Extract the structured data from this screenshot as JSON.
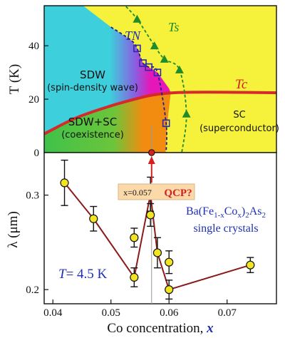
{
  "colors": {
    "sdw": "#3ecfdc",
    "sc": "#f6f13a",
    "coexist": "#3fc24a",
    "magenta": "#e617b9",
    "orange": "#f28c10",
    "tc_line": "#d42a2a",
    "tn_marker": "#2a2aa8",
    "ts_marker": "#1f8b2a",
    "lambda_line": "#8b1a1a",
    "lambda_marker": "#f2e421",
    "text_blue": "#1e2fb5",
    "text_red": "#d42020"
  },
  "chart_data": [
    {
      "type": "phase-diagram",
      "ylabel": "T (K)",
      "xlim": [
        0.0385,
        0.0785
      ],
      "ylim": [
        0,
        55
      ],
      "yticks": [
        "0",
        "20",
        "40"
      ],
      "grid": false,
      "series": [
        {
          "name": "T_N",
          "x": [
            0.0545,
            0.0555,
            0.0565,
            0.058,
            0.0595
          ],
          "y": [
            39,
            33.5,
            32,
            30,
            11
          ]
        },
        {
          "name": "T_s",
          "x": [
            0.0545,
            0.0575,
            0.0592,
            0.0618,
            0.063
          ],
          "y": [
            50,
            40,
            35,
            31,
            14.5
          ]
        },
        {
          "name": "T_c",
          "x": [
            0.0385,
            0.044,
            0.05,
            0.055,
            0.057,
            0.06,
            0.064,
            0.07,
            0.0785
          ],
          "y": [
            7,
            13,
            17.5,
            20.5,
            21.5,
            22.3,
            22.6,
            22.6,
            22.4
          ]
        }
      ],
      "regions": {
        "sdw_title": "SDW",
        "sdw_subtitle": "(spin-density wave)",
        "coexist_title": "SDW+SC",
        "coexist_subtitle": "(coexistence)",
        "sc_title": "SC",
        "sc_subtitle": "(superconductor)"
      },
      "curve_labels": {
        "tn": "TN",
        "ts": "Ts",
        "tc": "Tc"
      },
      "qcp": {
        "x": 0.057,
        "x_label": "x=0.057",
        "label": "QCP?"
      }
    },
    {
      "type": "line",
      "xlabel": "Co concentration, x",
      "ylabel": "λ (μm)",
      "xlim": [
        0.0385,
        0.0785
      ],
      "ylim": [
        0.185,
        0.345
      ],
      "xticks": [
        "0.04",
        "0.05",
        "0.06",
        "0.07"
      ],
      "yticks": [
        "0.2",
        "0.3"
      ],
      "grid": false,
      "points": [
        {
          "x": 0.042,
          "y": 0.313,
          "err": 0.024
        },
        {
          "x": 0.047,
          "y": 0.275,
          "err": 0.013
        },
        {
          "x": 0.054,
          "y": 0.213,
          "err": 0.01
        },
        {
          "x": 0.0568,
          "y": 0.301,
          "err": 0.018
        },
        {
          "x": 0.058,
          "y": 0.239,
          "err": 0.016
        },
        {
          "x": 0.06,
          "y": 0.2,
          "err": 0.01
        },
        {
          "x": 0.074,
          "y": 0.226,
          "err": 0.008
        }
      ],
      "extra_points": [
        {
          "x": 0.054,
          "y": 0.255,
          "err": 0.01
        },
        {
          "x": 0.0568,
          "y": 0.279,
          "err": 0.012
        },
        {
          "x": 0.06,
          "y": 0.229,
          "err": 0.012
        }
      ],
      "annotations": {
        "formula_line1": "Ba(Fe1-xCox)2As2",
        "formula_line2": "single crystals",
        "temperature": "T= 4.5 K"
      }
    }
  ]
}
